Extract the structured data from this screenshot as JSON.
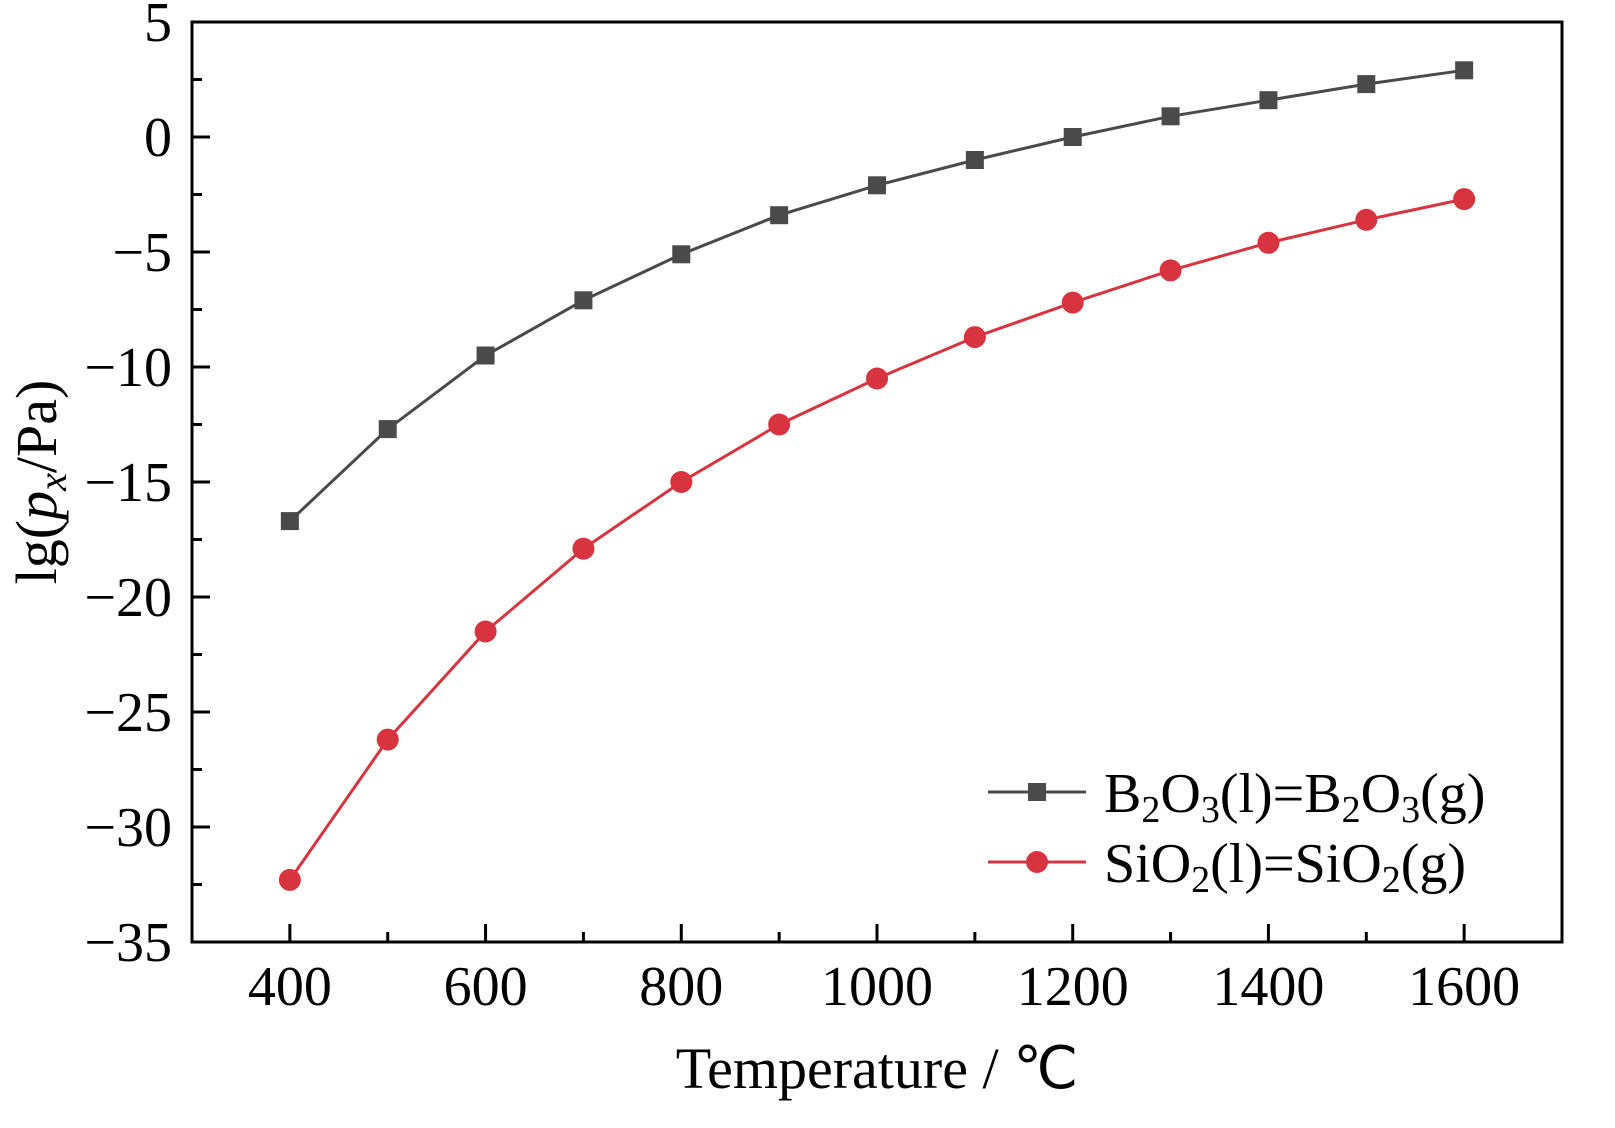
{
  "chart_data": {
    "type": "line",
    "title": "",
    "xlabel": "Temperature / ℃",
    "ylabel_parts": {
      "prefix": "lg(",
      "var": "p",
      "sub": "x",
      "suffix": "/Pa)"
    },
    "xlim": [
      300,
      1700
    ],
    "ylim": [
      -35,
      5
    ],
    "xticks": [
      400,
      600,
      800,
      1000,
      1200,
      1400,
      1600
    ],
    "yticks": [
      5,
      0,
      -5,
      -10,
      -15,
      -20,
      -25,
      -30,
      -35
    ],
    "ytick_labels": [
      "5",
      "0",
      "−5",
      "−10",
      "−15",
      "−20",
      "−25",
      "−30",
      "−35"
    ],
    "x": [
      400,
      500,
      600,
      700,
      800,
      900,
      1000,
      1100,
      1200,
      1300,
      1400,
      1500,
      1600
    ],
    "series": [
      {
        "key": "b2o3",
        "legend_parts": [
          "B",
          "2",
          "O",
          "3",
          "(l)=B",
          "2",
          "O",
          "3",
          "(g)"
        ],
        "color": "#4a4a4a",
        "marker": "square",
        "values": [
          -16.7,
          -12.7,
          -9.5,
          -7.1,
          -5.1,
          -3.4,
          -2.1,
          -1.0,
          0.0,
          0.9,
          1.6,
          2.3,
          2.9
        ]
      },
      {
        "key": "sio2",
        "legend_parts": [
          "SiO",
          "2",
          "(l)=SiO",
          "2",
          "(g)"
        ],
        "color": "#d8343f",
        "marker": "circle",
        "values": [
          -32.3,
          -26.2,
          -21.5,
          -17.9,
          -15.0,
          -12.5,
          -10.5,
          -8.7,
          -7.2,
          -5.8,
          -4.6,
          -3.6,
          -2.7
        ]
      }
    ],
    "legend_position": "bottom-right",
    "grid": false
  }
}
